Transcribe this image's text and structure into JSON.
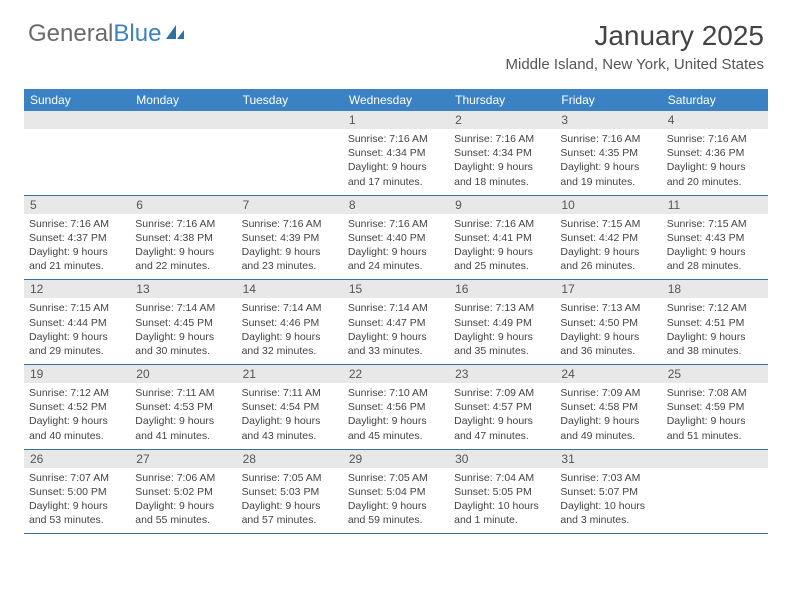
{
  "brand": {
    "part1": "General",
    "part2": "Blue"
  },
  "title": "January 2025",
  "location": "Middle Island, New York, United States",
  "header_bg": "#3b82c4",
  "header_fg": "#ffffff",
  "daynum_bg": "#e8e8e8",
  "rule_color": "#3b6fa0",
  "day_names": [
    "Sunday",
    "Monday",
    "Tuesday",
    "Wednesday",
    "Thursday",
    "Friday",
    "Saturday"
  ],
  "weeks": [
    {
      "nums": [
        "",
        "",
        "",
        "1",
        "2",
        "3",
        "4"
      ],
      "cells": [
        {
          "empty": true
        },
        {
          "empty": true
        },
        {
          "empty": true
        },
        {
          "sunrise": "Sunrise: 7:16 AM",
          "sunset": "Sunset: 4:34 PM",
          "day1": "Daylight: 9 hours",
          "day2": "and 17 minutes."
        },
        {
          "sunrise": "Sunrise: 7:16 AM",
          "sunset": "Sunset: 4:34 PM",
          "day1": "Daylight: 9 hours",
          "day2": "and 18 minutes."
        },
        {
          "sunrise": "Sunrise: 7:16 AM",
          "sunset": "Sunset: 4:35 PM",
          "day1": "Daylight: 9 hours",
          "day2": "and 19 minutes."
        },
        {
          "sunrise": "Sunrise: 7:16 AM",
          "sunset": "Sunset: 4:36 PM",
          "day1": "Daylight: 9 hours",
          "day2": "and 20 minutes."
        }
      ]
    },
    {
      "nums": [
        "5",
        "6",
        "7",
        "8",
        "9",
        "10",
        "11"
      ],
      "cells": [
        {
          "sunrise": "Sunrise: 7:16 AM",
          "sunset": "Sunset: 4:37 PM",
          "day1": "Daylight: 9 hours",
          "day2": "and 21 minutes."
        },
        {
          "sunrise": "Sunrise: 7:16 AM",
          "sunset": "Sunset: 4:38 PM",
          "day1": "Daylight: 9 hours",
          "day2": "and 22 minutes."
        },
        {
          "sunrise": "Sunrise: 7:16 AM",
          "sunset": "Sunset: 4:39 PM",
          "day1": "Daylight: 9 hours",
          "day2": "and 23 minutes."
        },
        {
          "sunrise": "Sunrise: 7:16 AM",
          "sunset": "Sunset: 4:40 PM",
          "day1": "Daylight: 9 hours",
          "day2": "and 24 minutes."
        },
        {
          "sunrise": "Sunrise: 7:16 AM",
          "sunset": "Sunset: 4:41 PM",
          "day1": "Daylight: 9 hours",
          "day2": "and 25 minutes."
        },
        {
          "sunrise": "Sunrise: 7:15 AM",
          "sunset": "Sunset: 4:42 PM",
          "day1": "Daylight: 9 hours",
          "day2": "and 26 minutes."
        },
        {
          "sunrise": "Sunrise: 7:15 AM",
          "sunset": "Sunset: 4:43 PM",
          "day1": "Daylight: 9 hours",
          "day2": "and 28 minutes."
        }
      ]
    },
    {
      "nums": [
        "12",
        "13",
        "14",
        "15",
        "16",
        "17",
        "18"
      ],
      "cells": [
        {
          "sunrise": "Sunrise: 7:15 AM",
          "sunset": "Sunset: 4:44 PM",
          "day1": "Daylight: 9 hours",
          "day2": "and 29 minutes."
        },
        {
          "sunrise": "Sunrise: 7:14 AM",
          "sunset": "Sunset: 4:45 PM",
          "day1": "Daylight: 9 hours",
          "day2": "and 30 minutes."
        },
        {
          "sunrise": "Sunrise: 7:14 AM",
          "sunset": "Sunset: 4:46 PM",
          "day1": "Daylight: 9 hours",
          "day2": "and 32 minutes."
        },
        {
          "sunrise": "Sunrise: 7:14 AM",
          "sunset": "Sunset: 4:47 PM",
          "day1": "Daylight: 9 hours",
          "day2": "and 33 minutes."
        },
        {
          "sunrise": "Sunrise: 7:13 AM",
          "sunset": "Sunset: 4:49 PM",
          "day1": "Daylight: 9 hours",
          "day2": "and 35 minutes."
        },
        {
          "sunrise": "Sunrise: 7:13 AM",
          "sunset": "Sunset: 4:50 PM",
          "day1": "Daylight: 9 hours",
          "day2": "and 36 minutes."
        },
        {
          "sunrise": "Sunrise: 7:12 AM",
          "sunset": "Sunset: 4:51 PM",
          "day1": "Daylight: 9 hours",
          "day2": "and 38 minutes."
        }
      ]
    },
    {
      "nums": [
        "19",
        "20",
        "21",
        "22",
        "23",
        "24",
        "25"
      ],
      "cells": [
        {
          "sunrise": "Sunrise: 7:12 AM",
          "sunset": "Sunset: 4:52 PM",
          "day1": "Daylight: 9 hours",
          "day2": "and 40 minutes."
        },
        {
          "sunrise": "Sunrise: 7:11 AM",
          "sunset": "Sunset: 4:53 PM",
          "day1": "Daylight: 9 hours",
          "day2": "and 41 minutes."
        },
        {
          "sunrise": "Sunrise: 7:11 AM",
          "sunset": "Sunset: 4:54 PM",
          "day1": "Daylight: 9 hours",
          "day2": "and 43 minutes."
        },
        {
          "sunrise": "Sunrise: 7:10 AM",
          "sunset": "Sunset: 4:56 PM",
          "day1": "Daylight: 9 hours",
          "day2": "and 45 minutes."
        },
        {
          "sunrise": "Sunrise: 7:09 AM",
          "sunset": "Sunset: 4:57 PM",
          "day1": "Daylight: 9 hours",
          "day2": "and 47 minutes."
        },
        {
          "sunrise": "Sunrise: 7:09 AM",
          "sunset": "Sunset: 4:58 PM",
          "day1": "Daylight: 9 hours",
          "day2": "and 49 minutes."
        },
        {
          "sunrise": "Sunrise: 7:08 AM",
          "sunset": "Sunset: 4:59 PM",
          "day1": "Daylight: 9 hours",
          "day2": "and 51 minutes."
        }
      ]
    },
    {
      "nums": [
        "26",
        "27",
        "28",
        "29",
        "30",
        "31",
        ""
      ],
      "cells": [
        {
          "sunrise": "Sunrise: 7:07 AM",
          "sunset": "Sunset: 5:00 PM",
          "day1": "Daylight: 9 hours",
          "day2": "and 53 minutes."
        },
        {
          "sunrise": "Sunrise: 7:06 AM",
          "sunset": "Sunset: 5:02 PM",
          "day1": "Daylight: 9 hours",
          "day2": "and 55 minutes."
        },
        {
          "sunrise": "Sunrise: 7:05 AM",
          "sunset": "Sunset: 5:03 PM",
          "day1": "Daylight: 9 hours",
          "day2": "and 57 minutes."
        },
        {
          "sunrise": "Sunrise: 7:05 AM",
          "sunset": "Sunset: 5:04 PM",
          "day1": "Daylight: 9 hours",
          "day2": "and 59 minutes."
        },
        {
          "sunrise": "Sunrise: 7:04 AM",
          "sunset": "Sunset: 5:05 PM",
          "day1": "Daylight: 10 hours",
          "day2": "and 1 minute."
        },
        {
          "sunrise": "Sunrise: 7:03 AM",
          "sunset": "Sunset: 5:07 PM",
          "day1": "Daylight: 10 hours",
          "day2": "and 3 minutes."
        },
        {
          "empty": true
        }
      ]
    }
  ]
}
